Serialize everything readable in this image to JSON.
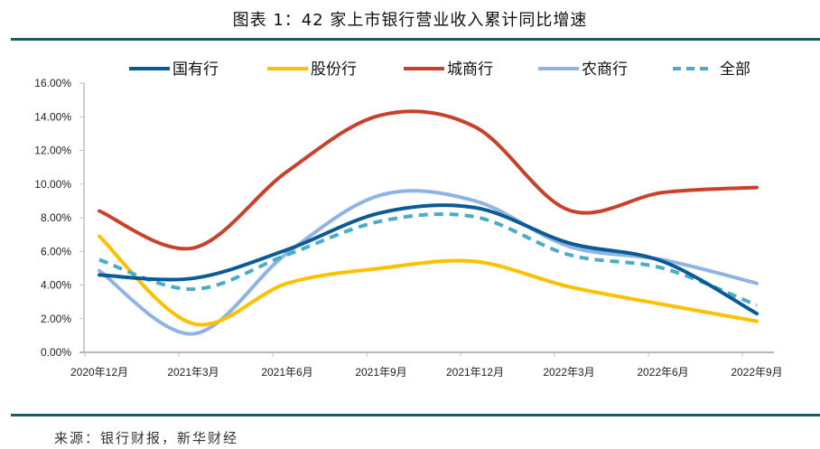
{
  "title": "图表 1：42 家上市银行营业收入累计同比增速",
  "source": "来源：银行财报，新华财经",
  "chart_data": {
    "type": "line",
    "title": "图表 1：42 家上市银行营业收入累计同比增速",
    "xlabel": "",
    "ylabel": "",
    "categories": [
      "2020年12月",
      "2021年3月",
      "2021年6月",
      "2021年9月",
      "2021年12月",
      "2022年3月",
      "2022年6月",
      "2022年9月"
    ],
    "y_ticks": [
      "0.00%",
      "2.00%",
      "4.00%",
      "6.00%",
      "8.00%",
      "10.00%",
      "12.00%",
      "14.00%",
      "16.00%"
    ],
    "ylim": [
      0,
      16
    ],
    "y_unit": "%",
    "grid": false,
    "smooth": true,
    "legend_position": "top",
    "series": [
      {
        "name": "国有行",
        "color": "#0a5a96",
        "dashed": false,
        "values": [
          4.6,
          4.4,
          6.1,
          8.3,
          8.6,
          6.5,
          5.4,
          2.3
        ]
      },
      {
        "name": "股份行",
        "color": "#ffc000",
        "dashed": false,
        "values": [
          6.9,
          1.7,
          4.1,
          5.0,
          5.4,
          3.9,
          2.85,
          1.85
        ]
      },
      {
        "name": "城商行",
        "color": "#c8412a",
        "dashed": false,
        "values": [
          8.4,
          6.2,
          10.75,
          14.1,
          13.4,
          8.45,
          9.5,
          9.8
        ]
      },
      {
        "name": "农商行",
        "color": "#8fb4e3",
        "dashed": false,
        "values": [
          4.85,
          1.1,
          5.9,
          9.35,
          9.0,
          6.3,
          5.5,
          4.1
        ]
      },
      {
        "name": "全部",
        "color": "#4bacc6",
        "dashed": true,
        "values": [
          5.5,
          3.75,
          5.8,
          7.8,
          8.05,
          5.8,
          5.0,
          2.8
        ]
      }
    ]
  }
}
